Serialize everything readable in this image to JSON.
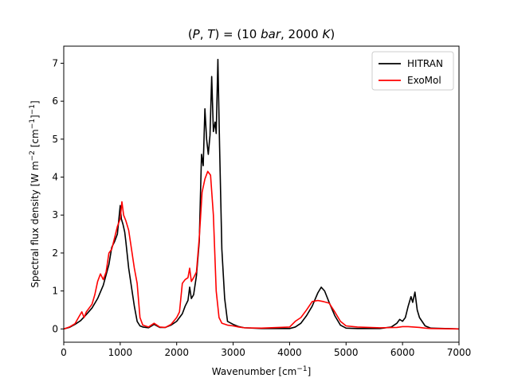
{
  "chart_data": {
    "type": "line",
    "title": "(P, T) = (10 bar, 2000 K)",
    "xlabel": "Wavenumber [cm⁻¹]",
    "ylabel": "Spectral flux density [W m⁻² [cm⁻¹]⁻¹]",
    "xlim": [
      0,
      7000
    ],
    "ylim": [
      -0.35,
      7.45
    ],
    "xticks": [
      0,
      1000,
      2000,
      3000,
      4000,
      5000,
      6000,
      7000
    ],
    "yticks": [
      0,
      1,
      2,
      3,
      4,
      5,
      6,
      7
    ],
    "grid": false,
    "legend_position": "top-right",
    "series": [
      {
        "name": "HITRAN",
        "color": "#000000",
        "points": [
          [
            0,
            0
          ],
          [
            100,
            0.04
          ],
          [
            200,
            0.12
          ],
          [
            300,
            0.22
          ],
          [
            400,
            0.38
          ],
          [
            500,
            0.55
          ],
          [
            600,
            0.8
          ],
          [
            700,
            1.15
          ],
          [
            800,
            1.7
          ],
          [
            850,
            2.15
          ],
          [
            900,
            2.3
          ],
          [
            950,
            2.5
          ],
          [
            1000,
            3.25
          ],
          [
            1020,
            2.9
          ],
          [
            1050,
            2.75
          ],
          [
            1080,
            2.55
          ],
          [
            1100,
            2.3
          ],
          [
            1150,
            1.6
          ],
          [
            1200,
            1.1
          ],
          [
            1250,
            0.6
          ],
          [
            1300,
            0.2
          ],
          [
            1350,
            0.08
          ],
          [
            1400,
            0.05
          ],
          [
            1500,
            0.03
          ],
          [
            1600,
            0.12
          ],
          [
            1700,
            0.04
          ],
          [
            1800,
            0.04
          ],
          [
            1900,
            0.1
          ],
          [
            2000,
            0.2
          ],
          [
            2100,
            0.4
          ],
          [
            2150,
            0.6
          ],
          [
            2200,
            0.75
          ],
          [
            2230,
            1.1
          ],
          [
            2260,
            0.8
          ],
          [
            2300,
            0.9
          ],
          [
            2350,
            1.4
          ],
          [
            2400,
            2.3
          ],
          [
            2440,
            4.6
          ],
          [
            2470,
            4.3
          ],
          [
            2500,
            5.8
          ],
          [
            2530,
            5.0
          ],
          [
            2560,
            4.6
          ],
          [
            2590,
            5.1
          ],
          [
            2620,
            6.65
          ],
          [
            2650,
            5.2
          ],
          [
            2680,
            5.45
          ],
          [
            2700,
            5.15
          ],
          [
            2730,
            7.1
          ],
          [
            2760,
            4.8
          ],
          [
            2800,
            2.1
          ],
          [
            2850,
            0.8
          ],
          [
            2900,
            0.2
          ],
          [
            3000,
            0.12
          ],
          [
            3100,
            0.06
          ],
          [
            3200,
            0.03
          ],
          [
            3500,
            0.01
          ],
          [
            4000,
            0.01
          ],
          [
            4100,
            0.05
          ],
          [
            4200,
            0.15
          ],
          [
            4300,
            0.35
          ],
          [
            4400,
            0.6
          ],
          [
            4500,
            0.95
          ],
          [
            4560,
            1.1
          ],
          [
            4620,
            1.0
          ],
          [
            4700,
            0.7
          ],
          [
            4800,
            0.35
          ],
          [
            4900,
            0.1
          ],
          [
            5000,
            0.02
          ],
          [
            5200,
            0.01
          ],
          [
            5600,
            0.01
          ],
          [
            5800,
            0.05
          ],
          [
            5900,
            0.15
          ],
          [
            5950,
            0.25
          ],
          [
            6000,
            0.2
          ],
          [
            6050,
            0.3
          ],
          [
            6100,
            0.6
          ],
          [
            6150,
            0.85
          ],
          [
            6180,
            0.7
          ],
          [
            6220,
            0.97
          ],
          [
            6260,
            0.5
          ],
          [
            6300,
            0.3
          ],
          [
            6400,
            0.08
          ],
          [
            6500,
            0.02
          ],
          [
            7000,
            0
          ]
        ]
      },
      {
        "name": "ExoMol",
        "color": "#ff0000",
        "points": [
          [
            0,
            0
          ],
          [
            100,
            0.05
          ],
          [
            200,
            0.14
          ],
          [
            280,
            0.35
          ],
          [
            320,
            0.45
          ],
          [
            360,
            0.3
          ],
          [
            400,
            0.45
          ],
          [
            500,
            0.65
          ],
          [
            550,
            0.9
          ],
          [
            600,
            1.25
          ],
          [
            650,
            1.45
          ],
          [
            700,
            1.3
          ],
          [
            750,
            1.5
          ],
          [
            800,
            2.0
          ],
          [
            850,
            2.1
          ],
          [
            900,
            2.4
          ],
          [
            950,
            2.7
          ],
          [
            1000,
            2.9
          ],
          [
            1030,
            3.35
          ],
          [
            1060,
            3.0
          ],
          [
            1100,
            2.85
          ],
          [
            1150,
            2.6
          ],
          [
            1200,
            2.1
          ],
          [
            1250,
            1.6
          ],
          [
            1300,
            1.2
          ],
          [
            1350,
            0.3
          ],
          [
            1400,
            0.1
          ],
          [
            1500,
            0.05
          ],
          [
            1600,
            0.15
          ],
          [
            1700,
            0.05
          ],
          [
            1800,
            0.04
          ],
          [
            1900,
            0.12
          ],
          [
            2000,
            0.3
          ],
          [
            2050,
            0.45
          ],
          [
            2100,
            1.2
          ],
          [
            2150,
            1.3
          ],
          [
            2200,
            1.35
          ],
          [
            2230,
            1.6
          ],
          [
            2260,
            1.25
          ],
          [
            2300,
            1.35
          ],
          [
            2350,
            1.5
          ],
          [
            2400,
            2.4
          ],
          [
            2450,
            3.6
          ],
          [
            2500,
            3.95
          ],
          [
            2550,
            4.15
          ],
          [
            2600,
            4.05
          ],
          [
            2650,
            3.0
          ],
          [
            2700,
            1.0
          ],
          [
            2750,
            0.3
          ],
          [
            2800,
            0.15
          ],
          [
            2900,
            0.1
          ],
          [
            3000,
            0.08
          ],
          [
            3100,
            0.05
          ],
          [
            3200,
            0.03
          ],
          [
            3500,
            0.02
          ],
          [
            4000,
            0.05
          ],
          [
            4100,
            0.2
          ],
          [
            4200,
            0.3
          ],
          [
            4300,
            0.5
          ],
          [
            4400,
            0.72
          ],
          [
            4500,
            0.75
          ],
          [
            4600,
            0.72
          ],
          [
            4700,
            0.68
          ],
          [
            4800,
            0.45
          ],
          [
            4900,
            0.2
          ],
          [
            5000,
            0.08
          ],
          [
            5200,
            0.05
          ],
          [
            5600,
            0.03
          ],
          [
            5900,
            0.04
          ],
          [
            6000,
            0.06
          ],
          [
            6100,
            0.06
          ],
          [
            6200,
            0.05
          ],
          [
            6300,
            0.04
          ],
          [
            6400,
            0.02
          ],
          [
            6500,
            0.01
          ],
          [
            7000,
            0
          ]
        ]
      }
    ]
  }
}
